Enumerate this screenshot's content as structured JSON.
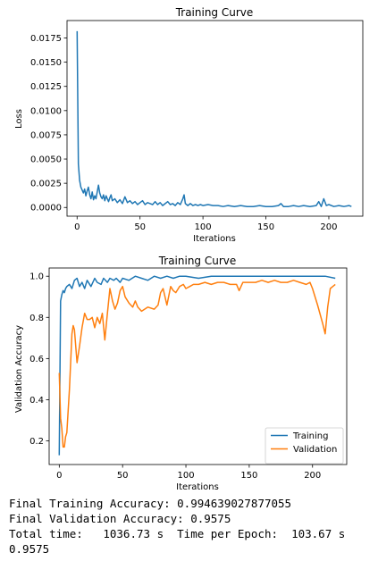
{
  "chart_data": [
    {
      "type": "line",
      "title": "Training Curve",
      "xlabel": "Iterations",
      "ylabel": "Loss",
      "xlim": [
        -8,
        227
      ],
      "ylim": [
        -0.0009,
        0.0193
      ],
      "xticks": [
        0,
        50,
        100,
        150,
        200
      ],
      "yticks": [
        0.0,
        0.0025,
        0.005,
        0.0075,
        0.01,
        0.0125,
        0.015,
        0.0175
      ],
      "ytick_labels": [
        "0.0000",
        "0.0025",
        "0.0050",
        "0.0075",
        "0.0100",
        "0.0125",
        "0.0150",
        "0.0175"
      ],
      "grid": false,
      "series": [
        {
          "color": "#1f77b4",
          "x": [
            0,
            1,
            2,
            3,
            4,
            5,
            6,
            7,
            8,
            9,
            10,
            11,
            12,
            13,
            14,
            15,
            16,
            17,
            18,
            19,
            20,
            21,
            22,
            23,
            24,
            25,
            26,
            27,
            28,
            30,
            32,
            34,
            36,
            38,
            40,
            42,
            44,
            46,
            48,
            50,
            52,
            54,
            56,
            58,
            60,
            62,
            64,
            66,
            68,
            70,
            72,
            74,
            76,
            78,
            80,
            82,
            84,
            85,
            86,
            88,
            90,
            92,
            94,
            96,
            98,
            100,
            104,
            108,
            112,
            116,
            120,
            125,
            130,
            135,
            140,
            145,
            150,
            155,
            160,
            162,
            164,
            168,
            172,
            176,
            180,
            185,
            190,
            192,
            194,
            196,
            198,
            200,
            204,
            208,
            212,
            216,
            218
          ],
          "values": [
            0.0182,
            0.0045,
            0.0028,
            0.0021,
            0.0018,
            0.0015,
            0.0019,
            0.0012,
            0.0017,
            0.0021,
            0.0013,
            0.0009,
            0.0016,
            0.0008,
            0.0012,
            0.0009,
            0.0016,
            0.0023,
            0.0015,
            0.0011,
            0.0009,
            0.0013,
            0.0007,
            0.0012,
            0.0009,
            0.0006,
            0.001,
            0.0013,
            0.0007,
            0.0009,
            0.0005,
            0.0008,
            0.0004,
            0.0011,
            0.0005,
            0.0007,
            0.0004,
            0.0006,
            0.0003,
            0.0005,
            0.0007,
            0.0003,
            0.0005,
            0.0004,
            0.0003,
            0.0006,
            0.0003,
            0.0005,
            0.0002,
            0.0004,
            0.0006,
            0.0003,
            0.0004,
            0.0002,
            0.0005,
            0.0003,
            0.0009,
            0.0013,
            0.0004,
            0.0002,
            0.0004,
            0.0002,
            0.0003,
            0.0002,
            0.0003,
            0.0002,
            0.0003,
            0.0002,
            0.0002,
            0.0001,
            0.0002,
            0.0001,
            0.0002,
            0.0001,
            0.0001,
            0.0002,
            0.0001,
            0.0001,
            0.0002,
            0.0004,
            0.0001,
            0.0001,
            0.0002,
            0.0001,
            0.0002,
            0.0001,
            0.0002,
            0.0006,
            0.0001,
            0.0009,
            0.0002,
            0.0003,
            0.0001,
            0.0002,
            0.0001,
            0.0002,
            0.0001
          ]
        }
      ]
    },
    {
      "type": "line",
      "title": "Training Curve",
      "xlabel": "Iterations",
      "ylabel": "Validation Accuracy",
      "xlim": [
        -8,
        227
      ],
      "ylim": [
        0.085,
        1.04
      ],
      "xticks": [
        0,
        50,
        100,
        150,
        200
      ],
      "yticks": [
        0.2,
        0.4,
        0.6,
        0.8,
        1.0
      ],
      "ytick_labels": [
        "0.2",
        "0.4",
        "0.6",
        "0.8",
        "1.0"
      ],
      "grid": false,
      "legend_position": "lower-right",
      "series": [
        {
          "name": "Training",
          "color": "#1f77b4",
          "x": [
            0,
            1,
            2,
            3,
            4,
            5,
            6,
            8,
            10,
            12,
            14,
            16,
            18,
            20,
            22,
            25,
            28,
            30,
            33,
            35,
            38,
            40,
            43,
            45,
            48,
            50,
            55,
            60,
            65,
            70,
            75,
            80,
            85,
            90,
            95,
            100,
            110,
            120,
            130,
            140,
            150,
            160,
            170,
            180,
            190,
            200,
            210,
            218
          ],
          "values": [
            0.13,
            0.88,
            0.91,
            0.93,
            0.92,
            0.94,
            0.95,
            0.96,
            0.94,
            0.98,
            0.99,
            0.95,
            0.97,
            0.94,
            0.98,
            0.95,
            0.99,
            0.97,
            0.96,
            0.99,
            0.97,
            0.99,
            0.98,
            0.99,
            0.97,
            0.99,
            0.98,
            1.0,
            0.99,
            0.98,
            1.0,
            0.99,
            1.0,
            0.99,
            1.0,
            1.0,
            0.99,
            1.0,
            1.0,
            1.0,
            1.0,
            1.0,
            1.0,
            1.0,
            1.0,
            1.0,
            1.0,
            0.99
          ]
        },
        {
          "name": "Validation",
          "color": "#ff7f0e",
          "x": [
            0,
            1,
            2,
            3,
            4,
            5,
            6,
            8,
            10,
            11,
            12,
            14,
            16,
            18,
            20,
            22,
            24,
            26,
            28,
            30,
            32,
            34,
            36,
            38,
            40,
            42,
            44,
            46,
            48,
            50,
            52,
            55,
            58,
            60,
            62,
            65,
            70,
            75,
            78,
            80,
            82,
            85,
            88,
            90,
            92,
            95,
            98,
            100,
            103,
            106,
            110,
            115,
            120,
            125,
            130,
            135,
            140,
            142,
            145,
            150,
            155,
            160,
            165,
            170,
            175,
            180,
            185,
            190,
            195,
            198,
            200,
            204,
            208,
            210,
            212,
            214,
            216,
            218
          ],
          "values": [
            0.53,
            0.31,
            0.26,
            0.17,
            0.17,
            0.22,
            0.24,
            0.45,
            0.72,
            0.76,
            0.74,
            0.58,
            0.66,
            0.75,
            0.82,
            0.79,
            0.79,
            0.8,
            0.75,
            0.8,
            0.77,
            0.82,
            0.69,
            0.82,
            0.94,
            0.88,
            0.84,
            0.87,
            0.93,
            0.95,
            0.9,
            0.87,
            0.85,
            0.88,
            0.85,
            0.83,
            0.85,
            0.84,
            0.86,
            0.92,
            0.94,
            0.86,
            0.95,
            0.93,
            0.92,
            0.95,
            0.96,
            0.94,
            0.95,
            0.96,
            0.96,
            0.97,
            0.96,
            0.97,
            0.97,
            0.96,
            0.96,
            0.93,
            0.97,
            0.97,
            0.97,
            0.98,
            0.97,
            0.98,
            0.97,
            0.97,
            0.98,
            0.97,
            0.96,
            0.97,
            0.94,
            0.86,
            0.77,
            0.72,
            0.85,
            0.94,
            0.95,
            0.96
          ]
        }
      ]
    }
  ],
  "output": {
    "lines": [
      "Final Training Accuracy: 0.994639027877055",
      "Final Validation Accuracy: 0.9575",
      "Total time:   1036.73 s  Time per Epoch:  103.67 s",
      "0.9575"
    ]
  }
}
